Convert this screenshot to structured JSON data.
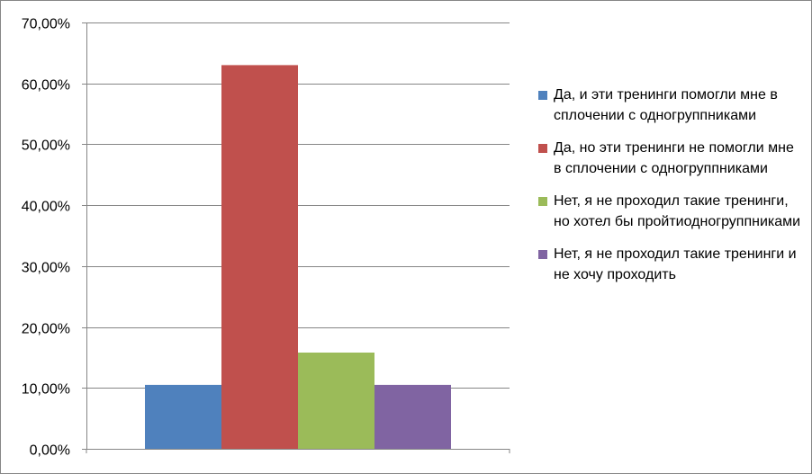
{
  "chart_data": {
    "type": "bar",
    "title": "",
    "xlabel": "",
    "ylabel": "",
    "categories": [
      ""
    ],
    "ylim": [
      0,
      0.7
    ],
    "y_ticks": [
      {
        "value": 0.0,
        "label": "0,00%"
      },
      {
        "value": 0.1,
        "label": "10,00%"
      },
      {
        "value": 0.2,
        "label": "20,00%"
      },
      {
        "value": 0.3,
        "label": "30,00%"
      },
      {
        "value": 0.4,
        "label": "40,00%"
      },
      {
        "value": 0.5,
        "label": "50,00%"
      },
      {
        "value": 0.6,
        "label": "60,00%"
      },
      {
        "value": 0.7,
        "label": "70,00%"
      }
    ],
    "grid": true,
    "legend_position": "right",
    "series": [
      {
        "name": "Да, и эти тренинги помогли мне в сплочении с одногруппниками",
        "values": [
          0.105
        ],
        "color": "#4F81BD"
      },
      {
        "name": "Да, но эти тренинги не помогли мне в сплочении с одногруппниками",
        "values": [
          0.63
        ],
        "color": "#C0504D"
      },
      {
        "name": "Нет, я не проходил такие тренинги, но хотел бы пройтиодногруппниками",
        "values": [
          0.158
        ],
        "color": "#9BBB59"
      },
      {
        "name": "Нет, я не проходил такие тренинги и не хочу проходить",
        "values": [
          0.105
        ],
        "color": "#8064A2"
      }
    ]
  }
}
